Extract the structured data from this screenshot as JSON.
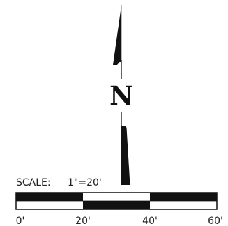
{
  "north_arrow": {
    "letter": "N"
  },
  "scale": {
    "label": "SCALE:",
    "ratio": "1\"=20'",
    "ticks": [
      "0'",
      "20'",
      "40'",
      "60'"
    ]
  },
  "colors": {
    "ink": "#111111",
    "paper": "#ffffff"
  }
}
